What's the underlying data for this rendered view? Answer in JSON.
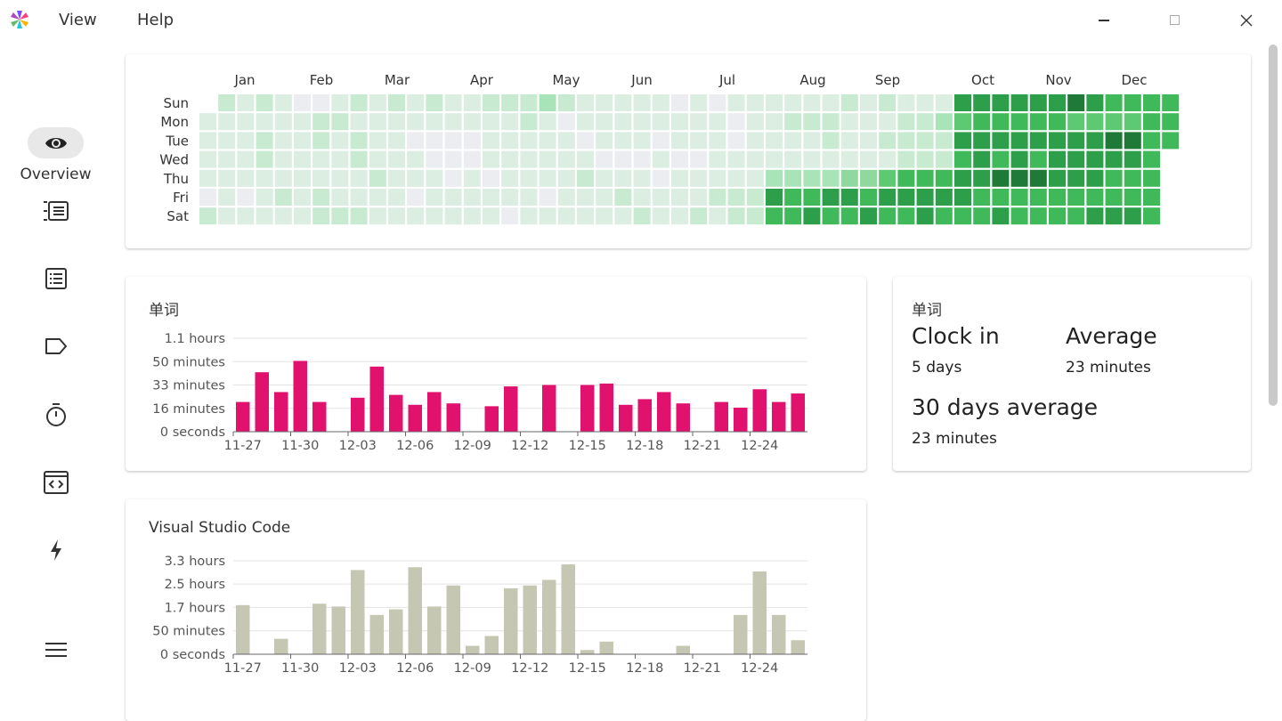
{
  "menu": {
    "view_label": "View",
    "help_label": "Help"
  },
  "icons": {
    "app": "app-logo-icon",
    "minimize": "minimize-icon",
    "maximize": "maximize-icon",
    "close": "close-icon",
    "overview": "eye-icon",
    "nav2": "numbered-list-icon",
    "nav3": "list-icon",
    "nav4": "tag-icon",
    "nav5": "timer-icon",
    "nav6": "code-window-icon",
    "nav7": "lightning-icon",
    "menu": "hamburger-menu-icon"
  },
  "sidebar": {
    "overview_label": "Overview"
  },
  "colors": {
    "accent_pink": "#e0126e",
    "bar_gray": "#c5c7b3",
    "heat": [
      "#ebedf0",
      "#dcede2",
      "#c7ead1",
      "#a9e4b9",
      "#8fd99f",
      "#5ec973",
      "#40b95a",
      "#2d9f4a",
      "#1f7a38"
    ]
  },
  "heatmap": {
    "months": [
      "Jan",
      "Feb",
      "Mar",
      "Apr",
      "May",
      "Jun",
      "Jul",
      "Aug",
      "Sep",
      "Oct",
      "Nov",
      "Dec"
    ],
    "days": [
      "Sun",
      "Mon",
      "Tue",
      "Wed",
      "Thu",
      "Fri",
      "Sat"
    ],
    "levels": [
      "0212100121",
      "1111112211",
      "1112112121",
      "1112111121",
      "1111111112",
      "0101212111",
      "2111112221",
      "2121122232",
      "1111111210",
      "1000011111",
      "1100011111",
      "1110101111",
      "1011111101",
      "1111110111",
      "1111101011",
      "1111111101",
      "0111011101",
      "1000100111",
      "2111011111",
      "1121111222",
      "1112112122",
      "1111212111",
      "1222111223",
      "1112112222",
      "1111111222",
      "3333445666",
      "7667767777",
      "6676676676",
      "7777778766",
      "5666665555",
      "7777777788",
      "6767677777",
      "7788877766",
      "7666666666",
      "6676666777",
      "6666665554",
      "6667666666",
      "6666666666",
      "6666666666",
      "6666666666",
      "6666666666",
      "6666666666"
    ]
  },
  "words_chart": {
    "title": "单词",
    "chart_data": {
      "type": "bar",
      "x": [
        "11-27",
        "11-28",
        "11-29",
        "11-30",
        "12-01",
        "12-02",
        "12-03",
        "12-04",
        "12-05",
        "12-06",
        "12-07",
        "12-08",
        "12-09",
        "12-10",
        "12-11",
        "12-12",
        "12-13",
        "12-14",
        "12-15",
        "12-16",
        "12-17",
        "12-18",
        "12-19",
        "12-20",
        "12-21",
        "12-22",
        "12-23",
        "12-24",
        "12-25",
        "12-26"
      ],
      "values": [
        21,
        42,
        28,
        50,
        21,
        0,
        24,
        46,
        26,
        19,
        28,
        20,
        0,
        18,
        32,
        0,
        33,
        0,
        33,
        34,
        19,
        23,
        28,
        20,
        0,
        21,
        17,
        30,
        21,
        27
      ],
      "unit": "minutes",
      "ylim": [
        0,
        66
      ],
      "ytick_values": [
        0,
        16.5,
        33,
        49.5,
        66
      ],
      "ytick_labels": [
        "0 seconds",
        "16 minutes",
        "33 minutes",
        "50 minutes",
        "1.1 hours"
      ],
      "xtick_labels": [
        "11-27",
        "11-30",
        "12-03",
        "12-06",
        "12-09",
        "12-12",
        "12-15",
        "12-18",
        "12-21",
        "12-24"
      ],
      "grid": true
    }
  },
  "stats": {
    "title": "单词",
    "clock_in_label": "Clock in",
    "clock_in_value": "5 days",
    "average_label": "Average",
    "average_value": "23 minutes",
    "thirty_label": "30 days average",
    "thirty_value": "23 minutes"
  },
  "vscode_chart": {
    "title": "Visual Studio Code",
    "chart_data": {
      "type": "bar",
      "x": [
        "11-27",
        "11-28",
        "11-29",
        "11-30",
        "12-01",
        "12-02",
        "12-03",
        "12-04",
        "12-05",
        "12-06",
        "12-07",
        "12-08",
        "12-09",
        "12-10",
        "12-11",
        "12-12",
        "12-13",
        "12-14",
        "12-15",
        "12-16",
        "12-17",
        "12-18",
        "12-19",
        "12-20",
        "12-21",
        "12-22",
        "12-23",
        "12-24",
        "12-25",
        "12-26"
      ],
      "values": [
        1.75,
        0,
        0.55,
        0,
        1.8,
        1.7,
        3.0,
        1.4,
        1.6,
        3.1,
        1.7,
        2.45,
        0.3,
        0.65,
        2.35,
        2.45,
        2.65,
        3.2,
        0.15,
        0.45,
        0,
        0,
        0,
        0.3,
        0,
        0,
        1.4,
        2.95,
        1.4,
        0.5
      ],
      "unit": "hours",
      "ylim": [
        0,
        3.33
      ],
      "ytick_values": [
        0,
        0.833,
        1.667,
        2.5,
        3.33
      ],
      "ytick_labels": [
        "0 seconds",
        "50 minutes",
        "1.7 hours",
        "2.5 hours",
        "3.3 hours"
      ],
      "xtick_labels": [
        "11-27",
        "11-30",
        "12-03",
        "12-06",
        "12-09",
        "12-12",
        "12-15",
        "12-18",
        "12-21",
        "12-24"
      ],
      "grid": true
    }
  }
}
